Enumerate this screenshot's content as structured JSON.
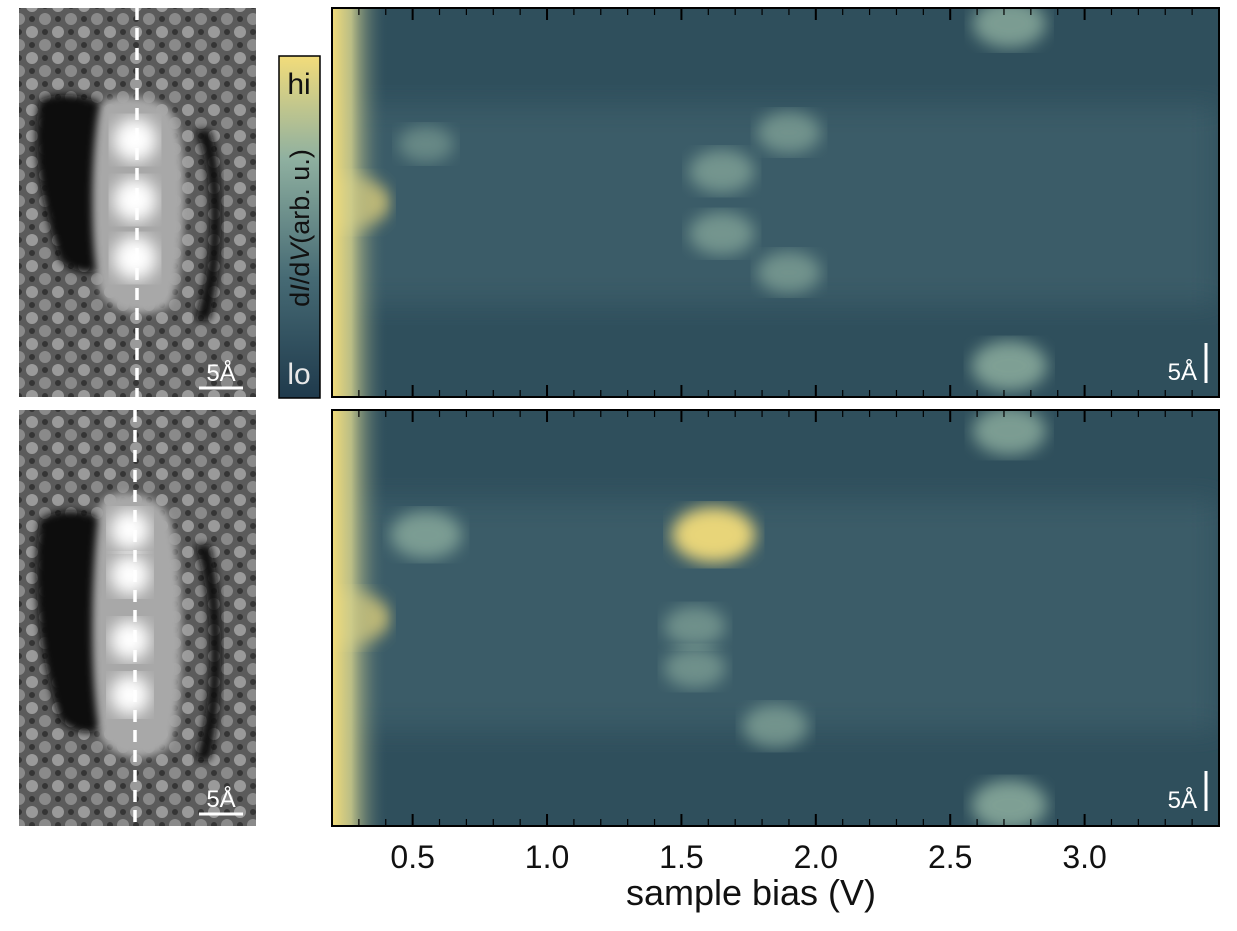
{
  "chart_data": [
    {
      "type": "heatmap",
      "panel": "top-spectral-map",
      "xlabel": "sample bias (V)",
      "xlim": [
        0.2,
        3.5
      ],
      "xticks": [
        0.5,
        1.0,
        1.5,
        2.0,
        2.5,
        3.0
      ],
      "xtick_labels": [
        "0.5",
        "1.0",
        "1.5",
        "2.0",
        "2.5",
        "3.0"
      ],
      "colorbar": {
        "label": "dI/dV(arb. u.)",
        "label_parts": [
          "d",
          "I",
          "/d",
          "V",
          "(arb. u.)"
        ],
        "high": "hi",
        "low": "lo",
        "colors": [
          "#1f3a4c",
          "#466a74",
          "#8fb0a0",
          "#f2dc7a"
        ]
      },
      "scale_bar": "5Å",
      "features": [
        {
          "bias": 0.25,
          "pos": 0.5,
          "intensity": 1.0
        },
        {
          "bias": 2.72,
          "pos": 0.04,
          "intensity": 0.75
        },
        {
          "bias": 2.72,
          "pos": 0.92,
          "intensity": 0.8
        },
        {
          "bias": 1.65,
          "pos": 0.42,
          "intensity": 0.55
        },
        {
          "bias": 1.65,
          "pos": 0.58,
          "intensity": 0.55
        },
        {
          "bias": 1.9,
          "pos": 0.32,
          "intensity": 0.5
        },
        {
          "bias": 1.9,
          "pos": 0.68,
          "intensity": 0.5
        },
        {
          "bias": 0.55,
          "pos": 0.35,
          "intensity": 0.3
        }
      ]
    },
    {
      "type": "heatmap",
      "panel": "bottom-spectral-map",
      "xlabel": "sample bias (V)",
      "xlim": [
        0.2,
        3.5
      ],
      "xticks": [
        0.5,
        1.0,
        1.5,
        2.0,
        2.5,
        3.0
      ],
      "xtick_labels": [
        "0.5",
        "1.0",
        "1.5",
        "2.0",
        "2.5",
        "3.0"
      ],
      "scale_bar": "5Å",
      "features": [
        {
          "bias": 0.25,
          "pos": 0.5,
          "intensity": 1.0
        },
        {
          "bias": 0.55,
          "pos": 0.3,
          "intensity": 0.7
        },
        {
          "bias": 1.62,
          "pos": 0.3,
          "intensity": 1.0
        },
        {
          "bias": 1.85,
          "pos": 0.76,
          "intensity": 0.55
        },
        {
          "bias": 1.55,
          "pos": 0.52,
          "intensity": 0.45
        },
        {
          "bias": 1.55,
          "pos": 0.62,
          "intensity": 0.45
        },
        {
          "bias": 2.72,
          "pos": 0.05,
          "intensity": 0.75
        },
        {
          "bias": 2.72,
          "pos": 0.95,
          "intensity": 0.8
        }
      ]
    }
  ],
  "topography": [
    {
      "panel": "top-stm-image",
      "scale_bar": "5Å",
      "lobes": 3
    },
    {
      "panel": "bottom-stm-image",
      "scale_bar": "5Å",
      "lobes": 4
    }
  ]
}
